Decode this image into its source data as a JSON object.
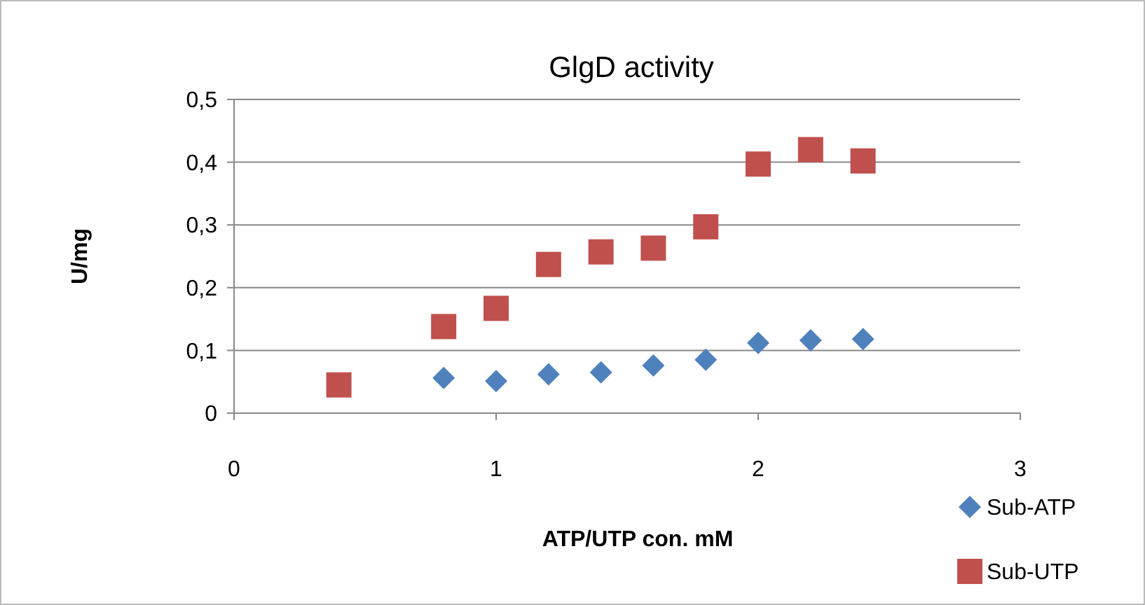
{
  "chart_data": {
    "type": "scatter",
    "title": "GlgD activity",
    "xlabel": "ATP/UTP con. mM",
    "ylabel": "U/mg",
    "xlim": [
      0,
      3
    ],
    "xticks": [
      0,
      1,
      2,
      3
    ],
    "ylim": [
      0,
      0.5
    ],
    "yticks": [
      0,
      {
        "value": 0.1,
        "label": "0,1"
      },
      {
        "value": 0.2,
        "label": "0,2"
      },
      {
        "value": 0.3,
        "label": "0,3"
      },
      {
        "value": 0.4,
        "label": "0,4"
      },
      {
        "value": 0.5,
        "label": "0,5"
      }
    ],
    "grid": "y",
    "legend": "bottom right",
    "series": [
      {
        "name": "Sub-ATP",
        "color": "#4f81bd",
        "marker": "diamond",
        "x": [
          0.8,
          1.0,
          1.2,
          1.4,
          1.6,
          1.8,
          2.0,
          2.2,
          2.4
        ],
        "values": [
          0.056,
          0.051,
          0.062,
          0.065,
          0.076,
          0.085,
          0.112,
          0.116,
          0.118
        ]
      },
      {
        "name": "Sub-UTP",
        "color": "#c0504d",
        "marker": "square",
        "x": [
          0.4,
          0.8,
          1.0,
          1.2,
          1.4,
          1.6,
          1.8,
          2.0,
          2.2,
          2.4
        ],
        "values": [
          0.045,
          0.138,
          0.167,
          0.237,
          0.257,
          0.263,
          0.297,
          0.397,
          0.42,
          0.402
        ]
      }
    ]
  }
}
